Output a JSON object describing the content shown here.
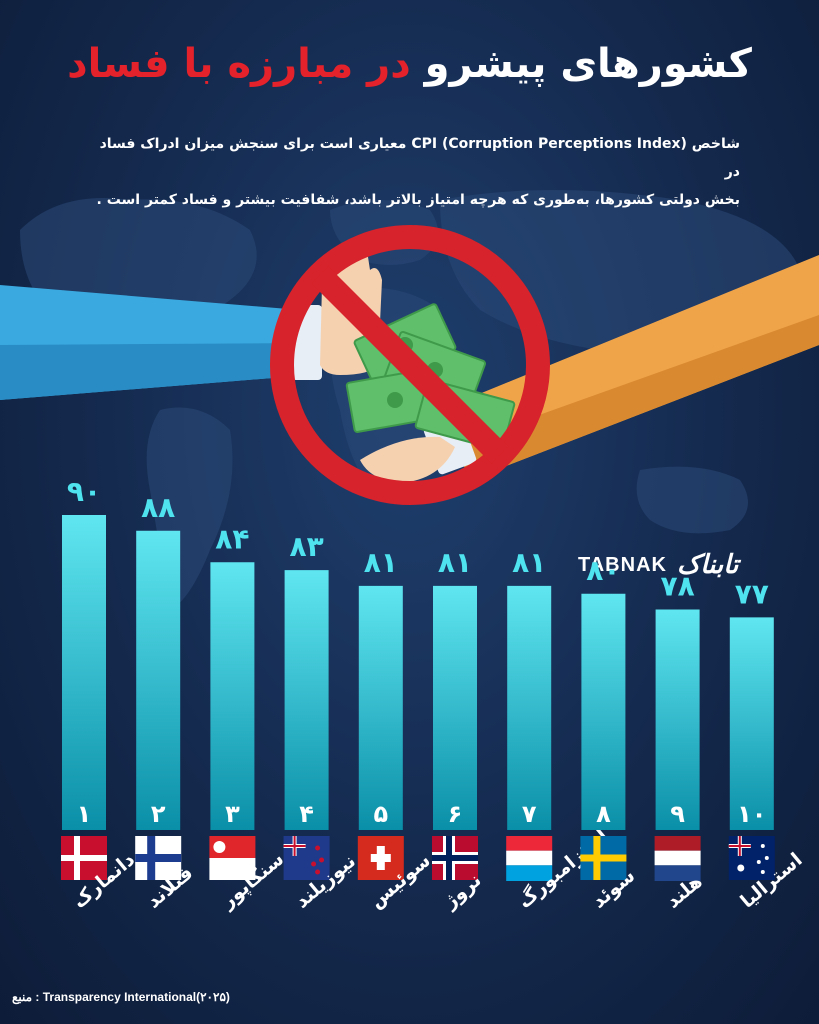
{
  "title": {
    "part_white": "کشورهای پیشرو",
    "part_red": "در مبارزه با فساد"
  },
  "description": {
    "line1": "شاخص  CPI (Corruption Perceptions Index)  معیاری است برای سنجش میزان ادراک فساد در",
    "line2": "بخش دولتی کشورها، به‌طوری که هرچه امتیاز بالاتر باشد، شفافیت بیشتر و فساد کمتر است ."
  },
  "brand": {
    "en": "TABNAK",
    "fa": "تابناک"
  },
  "source": "منبع : Transparency International(۲۰۲۵)",
  "colors": {
    "bar_top": "#5fe6f0",
    "bar_bottom": "#0a8fa8",
    "title_red": "#e3222b",
    "background": "#14294d"
  },
  "chart_data": {
    "type": "bar",
    "categories": [
      "دانمارک",
      "فنلاند",
      "سنگاپور",
      "نیوزیلند",
      "سوئیس",
      "نروژ",
      "لوکزامبورگ",
      "سوئد",
      "هلند",
      "استرالیا"
    ],
    "values": [
      90,
      88,
      84,
      83,
      81,
      81,
      81,
      80,
      78,
      77
    ],
    "value_labels": [
      "۹۰",
      "۸۸",
      "۸۴",
      "۸۳",
      "۸۱",
      "۸۱",
      "۸۱",
      "۸۰",
      "۷۸",
      "۷۷"
    ],
    "rank_labels": [
      "۱",
      "۲",
      "۳",
      "۴",
      "۵",
      "۶",
      "۷",
      "۸",
      "۹",
      "۱۰"
    ],
    "flags": [
      "denmark-flag",
      "finland-flag",
      "singapore-flag",
      "new-zealand-flag",
      "switzerland-flag",
      "norway-flag",
      "luxembourg-flag",
      "sweden-flag",
      "netherlands-flag",
      "australia-flag"
    ],
    "title": "",
    "xlabel": "",
    "ylabel": "",
    "grid": false
  }
}
